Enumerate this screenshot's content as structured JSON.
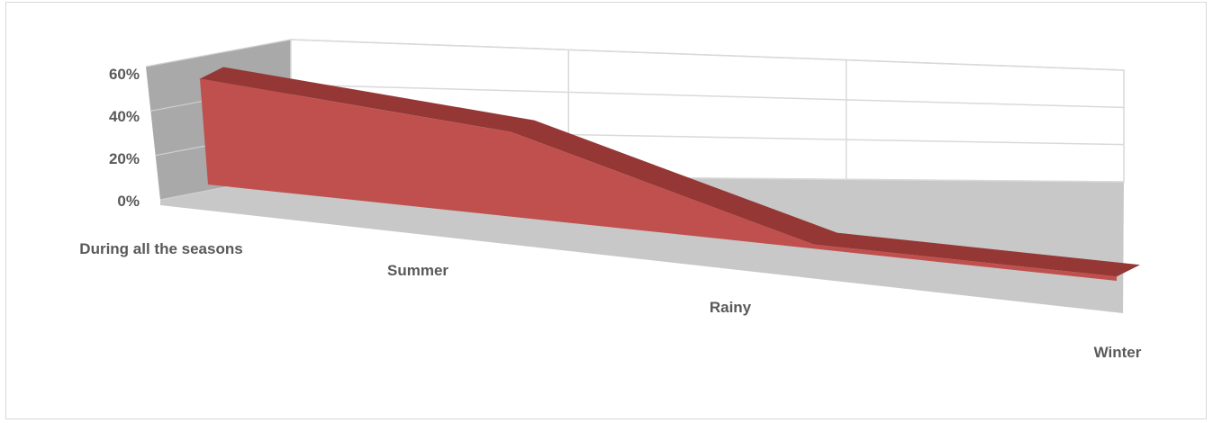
{
  "chart_data": {
    "type": "area",
    "variant": "3d-area",
    "categories": [
      "During all the seasons",
      "Summer",
      "Rainy",
      "Winter"
    ],
    "series": [
      {
        "values": [
          0.5,
          0.4,
          0.02,
          0.02
        ]
      }
    ],
    "ylim": [
      0,
      0.6
    ],
    "yticks": [
      0,
      0.2,
      0.4,
      0.6
    ],
    "ytick_labels": [
      "0%",
      "20%",
      "40%",
      "60%"
    ],
    "grid": true,
    "legend": "none",
    "colors": {
      "front": "#c0504d",
      "top": "#953735",
      "floor": "#c8c8c8",
      "side_wall": "#a9a9a9",
      "grid": "#d9d9d9"
    }
  }
}
